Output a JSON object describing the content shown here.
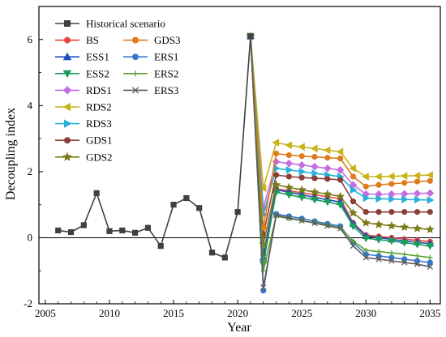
{
  "chart_data": {
    "type": "line",
    "xlabel": "Year",
    "ylabel": "Decoupling index",
    "xlim": [
      2004.5,
      2035.8
    ],
    "ylim": [
      -2,
      7
    ],
    "x_ticks": [
      2005,
      2010,
      2015,
      2020,
      2025,
      2030,
      2035
    ],
    "y_ticks": [
      -2,
      0,
      2,
      4,
      6
    ],
    "grid": false,
    "legend_placement": "top-left",
    "historical": {
      "name": "Historical scenario",
      "color": "#404040",
      "marker": "square",
      "x": [
        2006,
        2007,
        2008,
        2009,
        2010,
        2011,
        2012,
        2013,
        2014,
        2015,
        2016,
        2017,
        2018,
        2019,
        2020,
        2021
      ],
      "y": [
        0.22,
        0.17,
        0.38,
        1.35,
        0.2,
        0.22,
        0.15,
        0.3,
        -0.25,
        1.0,
        1.2,
        0.9,
        -0.45,
        -0.6,
        0.78,
        6.1
      ]
    },
    "scenario_x": [
      2021,
      2022,
      2023,
      2024,
      2025,
      2026,
      2027,
      2028,
      2029,
      2030,
      2031,
      2032,
      2033,
      2034,
      2035
    ],
    "series": [
      {
        "name": "BS",
        "color": "#e8453c",
        "marker": "circle",
        "values": [
          6.1,
          -0.5,
          1.48,
          1.42,
          1.36,
          1.3,
          1.24,
          1.18,
          0.45,
          0.08,
          0.04,
          0.0,
          -0.04,
          -0.08,
          -0.12
        ]
      },
      {
        "name": "ESS1",
        "color": "#1f4fbf",
        "marker": "triangle-up",
        "values": [
          6.1,
          -0.6,
          1.45,
          1.38,
          1.3,
          1.22,
          1.15,
          1.08,
          0.42,
          0.05,
          0.0,
          -0.05,
          -0.1,
          -0.14,
          -0.18
        ]
      },
      {
        "name": "ESS2",
        "color": "#1a9e5c",
        "marker": "triangle-down",
        "values": [
          6.1,
          -0.8,
          1.38,
          1.3,
          1.22,
          1.15,
          1.08,
          1.0,
          0.35,
          -0.02,
          -0.06,
          -0.1,
          -0.15,
          -0.2,
          -0.25
        ]
      },
      {
        "name": "RDS1",
        "color": "#c46ee0",
        "marker": "diamond",
        "values": [
          6.1,
          0.9,
          2.3,
          2.25,
          2.2,
          2.15,
          2.1,
          2.05,
          1.6,
          1.32,
          1.32,
          1.32,
          1.33,
          1.34,
          1.35
        ]
      },
      {
        "name": "RDS2",
        "color": "#c8b41a",
        "marker": "triangle-left",
        "values": [
          6.1,
          1.5,
          2.88,
          2.8,
          2.75,
          2.7,
          2.65,
          2.6,
          2.1,
          1.85,
          1.85,
          1.86,
          1.87,
          1.88,
          1.9
        ]
      },
      {
        "name": "RDS3",
        "color": "#28b0d8",
        "marker": "triangle-right",
        "values": [
          6.1,
          0.7,
          2.1,
          2.05,
          2.0,
          1.95,
          1.9,
          1.85,
          1.45,
          1.2,
          1.18,
          1.17,
          1.16,
          1.15,
          1.14
        ]
      },
      {
        "name": "GDS1",
        "color": "#8a3f36",
        "marker": "circle",
        "values": [
          6.1,
          0.1,
          1.9,
          1.85,
          1.82,
          1.8,
          1.78,
          1.75,
          1.1,
          0.78,
          0.78,
          0.78,
          0.78,
          0.78,
          0.78
        ]
      },
      {
        "name": "GDS2",
        "color": "#7a7a1a",
        "marker": "star",
        "values": [
          6.1,
          -0.2,
          1.6,
          1.52,
          1.45,
          1.38,
          1.32,
          1.25,
          0.75,
          0.45,
          0.4,
          0.36,
          0.32,
          0.28,
          0.25
        ]
      },
      {
        "name": "GDS3",
        "color": "#e07a1e",
        "marker": "circle",
        "values": [
          6.1,
          0.3,
          2.55,
          2.5,
          2.47,
          2.45,
          2.42,
          2.4,
          1.85,
          1.55,
          1.6,
          1.63,
          1.66,
          1.7,
          1.72
        ]
      },
      {
        "name": "ERS1",
        "color": "#3a78c9",
        "marker": "circle",
        "values": [
          6.1,
          -1.6,
          0.72,
          0.65,
          0.58,
          0.5,
          0.42,
          0.35,
          -0.15,
          -0.5,
          -0.55,
          -0.6,
          -0.65,
          -0.7,
          -0.75
        ]
      },
      {
        "name": "ERS2",
        "color": "#5aa02c",
        "marker": "plus",
        "values": [
          6.1,
          -1.0,
          0.65,
          0.58,
          0.52,
          0.45,
          0.38,
          0.3,
          -0.1,
          -0.38,
          -0.42,
          -0.46,
          -0.5,
          -0.55,
          -0.6
        ]
      },
      {
        "name": "ERS3",
        "color": "#5c5c5c",
        "marker": "x",
        "values": [
          6.1,
          -1.5,
          0.68,
          0.6,
          0.52,
          0.44,
          0.36,
          0.28,
          -0.25,
          -0.6,
          -0.65,
          -0.7,
          -0.75,
          -0.8,
          -0.88
        ]
      }
    ],
    "legend_col1": [
      "Historical scenario",
      "BS",
      "ESS1",
      "ESS2",
      "RDS1",
      "RDS2",
      "RDS3",
      "GDS1",
      "GDS2"
    ],
    "legend_col2": [
      "GDS3",
      "ERS1",
      "ERS2",
      "ERS3"
    ]
  }
}
